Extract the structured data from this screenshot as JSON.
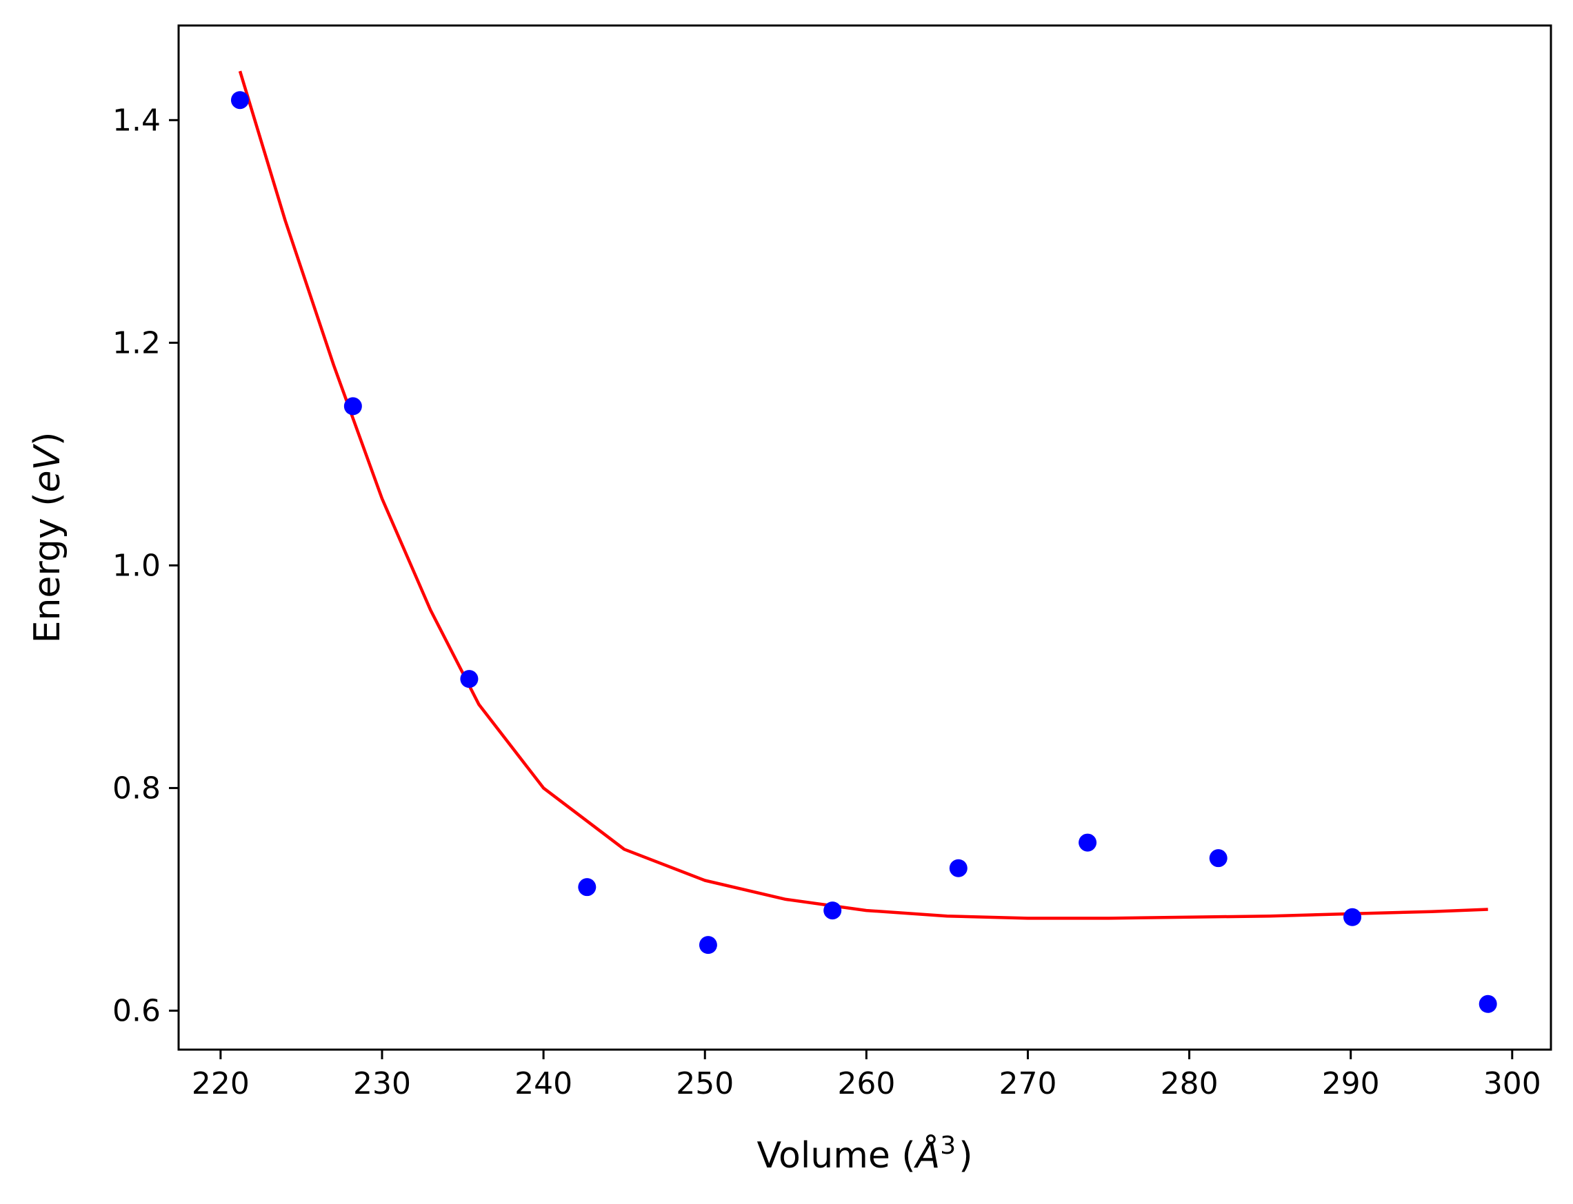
{
  "chart_data": {
    "type": "scatter",
    "xlabel": {
      "prefix": "Volume (",
      "var": "Å",
      "sup": "3",
      "suffix": ")"
    },
    "ylabel": {
      "prefix": "Energy (",
      "var": "eV",
      "suffix": ")"
    },
    "xlim": [
      217.4,
      302.4
    ],
    "ylim": [
      0.565,
      1.485
    ],
    "xticks": [
      220,
      230,
      240,
      250,
      260,
      270,
      280,
      290,
      300
    ],
    "xtick_labels": [
      "220",
      "230",
      "240",
      "250",
      "260",
      "270",
      "280",
      "290",
      "300"
    ],
    "yticks": [
      0.6,
      0.8,
      1.0,
      1.2,
      1.4
    ],
    "ytick_labels": [
      "0.6",
      "0.8",
      "1.0",
      "1.2",
      "1.4"
    ],
    "grid": false,
    "legend": "none",
    "series": [
      {
        "kind": "points",
        "color": "#0000ff",
        "x": [
          221.2,
          228.2,
          235.4,
          242.7,
          250.2,
          257.9,
          265.7,
          273.7,
          281.8,
          290.1,
          298.5
        ],
        "y": [
          1.418,
          1.143,
          0.898,
          0.711,
          0.659,
          0.69,
          0.728,
          0.751,
          0.737,
          0.684,
          0.606
        ]
      },
      {
        "kind": "fit",
        "color": "#ff0000",
        "x": [
          221.2,
          224.0,
          227.0,
          230.0,
          233.0,
          236.0,
          240.0,
          245.0,
          250.0,
          255.0,
          260.0,
          265.0,
          270.0,
          275.0,
          280.0,
          285.0,
          290.0,
          295.0,
          298.5
        ],
        "y": [
          1.444,
          1.31,
          1.18,
          1.06,
          0.96,
          0.875,
          0.8,
          0.745,
          0.717,
          0.7,
          0.69,
          0.685,
          0.683,
          0.683,
          0.684,
          0.685,
          0.687,
          0.689,
          0.691
        ]
      }
    ]
  }
}
